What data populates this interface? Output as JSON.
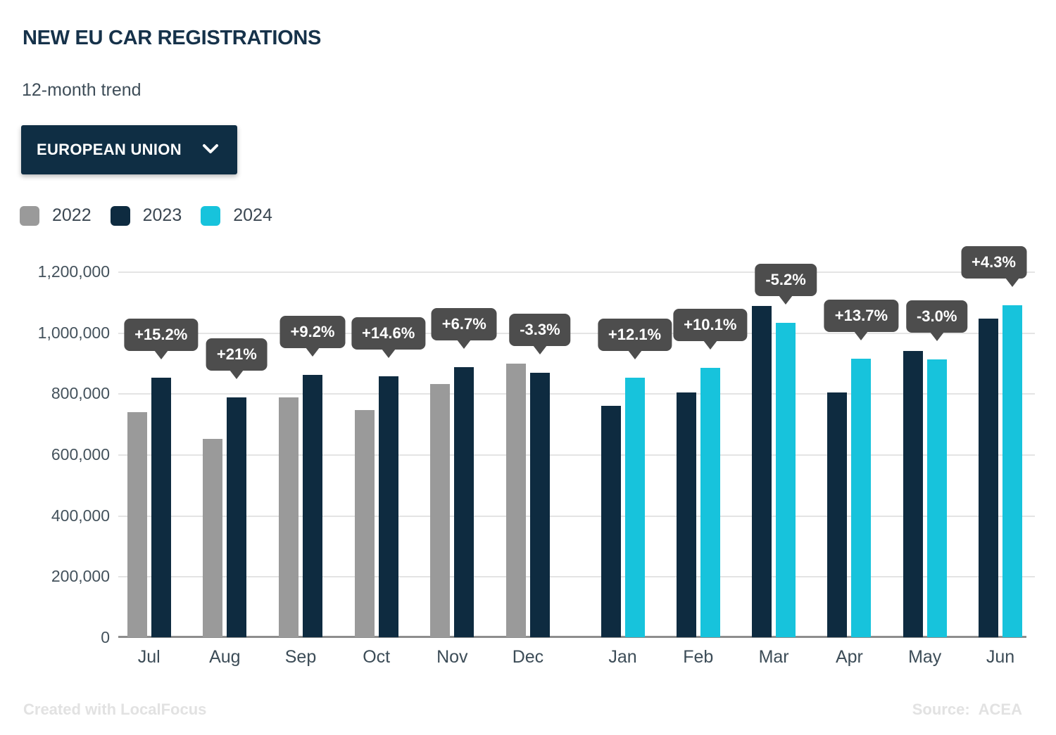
{
  "header": {
    "title": "NEW EU CAR REGISTRATIONS",
    "subtitle": "12-month trend"
  },
  "region_selector": {
    "label": "EUROPEAN UNION",
    "icon": "chevron-down-icon"
  },
  "legend": [
    {
      "label": "2022",
      "color": "#9a9a9a"
    },
    {
      "label": "2023",
      "color": "#0e2b40"
    },
    {
      "label": "2024",
      "color": "#17c3dc"
    }
  ],
  "chart_data": {
    "type": "bar",
    "title": "NEW EU CAR REGISTRATIONS",
    "subtitle": "12-month trend",
    "categories": [
      "Jul",
      "Aug",
      "Sep",
      "Oct",
      "Nov",
      "Dec",
      "Jan",
      "Feb",
      "Mar",
      "Apr",
      "May",
      "Jun"
    ],
    "series": [
      {
        "name": "2022",
        "color": "#9a9a9a",
        "values": [
          739000,
          651000,
          788000,
          746000,
          830000,
          897000,
          null,
          null,
          null,
          null,
          null,
          null
        ]
      },
      {
        "name": "2023",
        "color": "#0e2b40",
        "values": [
          851000,
          788000,
          861000,
          856000,
          886000,
          867000,
          760000,
          803000,
          1088000,
          804000,
          940000,
          1045000
        ]
      },
      {
        "name": "2024",
        "color": "#17c3dc",
        "values": [
          null,
          null,
          null,
          null,
          null,
          null,
          852000,
          884000,
          1032000,
          914000,
          912000,
          1090000
        ]
      }
    ],
    "change_labels": [
      "+15.2%",
      "+21%",
      "+9.2%",
      "+14.6%",
      "+6.7%",
      "-3.3%",
      "+12.1%",
      "+10.1%",
      "-5.2%",
      "+13.7%",
      "-3.0%",
      "+4.3%"
    ],
    "yticks": [
      "0",
      "200,000",
      "400,000",
      "600,000",
      "800,000",
      "1,000,000",
      "1,200,000"
    ],
    "ylim": [
      0,
      1200000
    ],
    "grid": true,
    "legend_position": "top-left",
    "tooltip_color": "#4d4d4d"
  },
  "footer": {
    "credit": "Created with LocalFocus",
    "source_label": "Source:",
    "source_value": "ACEA"
  }
}
